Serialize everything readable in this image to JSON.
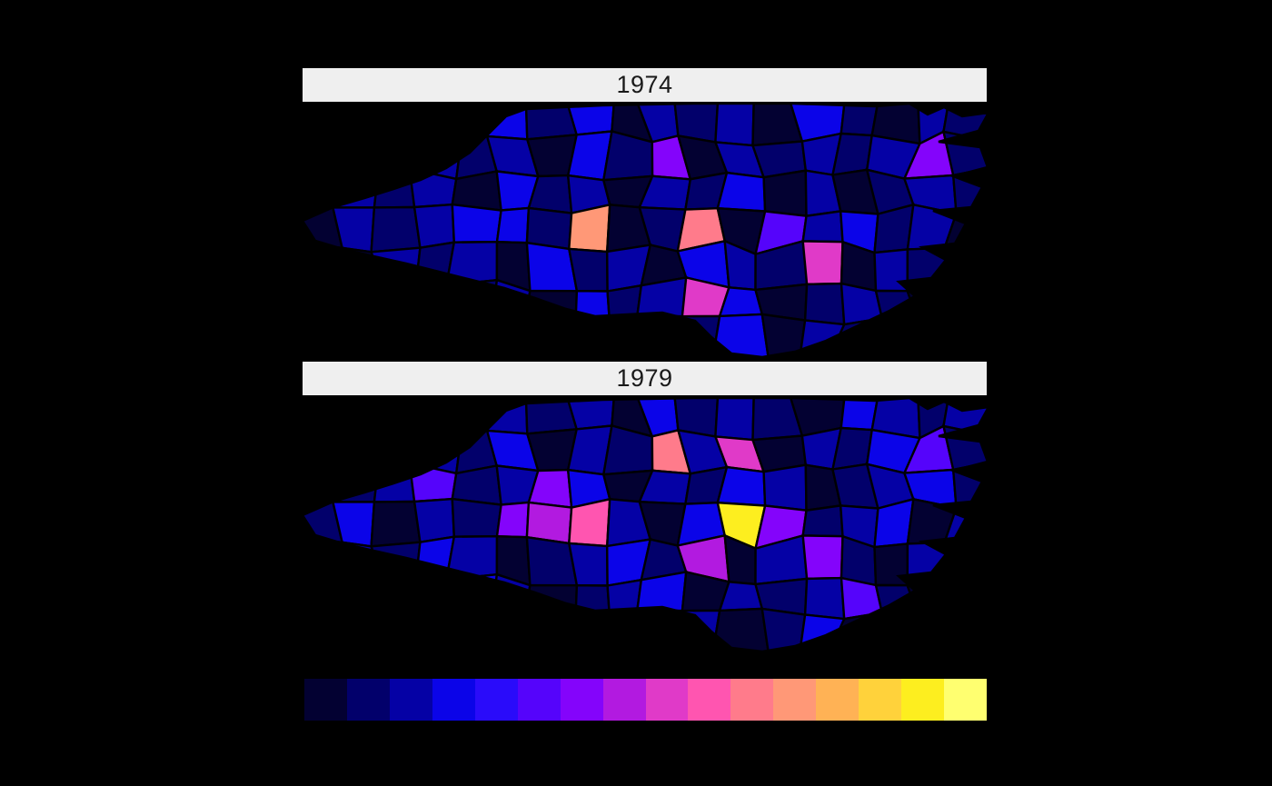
{
  "figure": {
    "background": "#000000",
    "strip_bg": "#efefef",
    "strip_text_color": "#1a1a1a",
    "county_border_color": "#000000"
  },
  "chart_data": {
    "type": "heatmap",
    "subtype": "faceted_choropleth_map_north_carolina_counties",
    "title": "",
    "xlabel": "",
    "ylabel": "",
    "facets": [
      {
        "label": "1974",
        "cell_colors": [
          "212103130212031021",
          "120212031602121261",
          "021203120213020121",
          "0212331b01a0523120",
          "102120312032180210",
          "210212031283012102",
          "120120120213021021"
        ]
      },
      {
        "label": "1979",
        "cell_colors": [
          "121032120312103212",
          "201213021a28021351",
          "012512630213201231",
          "13021679203e612302",
          "021320123170261023",
          "102132012302125102",
          "210201203120130210"
        ]
      }
    ],
    "grid_rows": 7,
    "grid_cols": 18,
    "palette": [
      "#030132",
      "#02006b",
      "#0501a5",
      "#0b04e8",
      "#2a0bfa",
      "#5504fb",
      "#8404fb",
      "#b21ae0",
      "#e03ac8",
      "#ff55b0",
      "#ff7b8b",
      "#ff9877",
      "#ffb255",
      "#ffd23b",
      "#fdee1f",
      "#ffff70"
    ],
    "legend": {
      "position": "bottom",
      "orientation": "horizontal",
      "n_steps": 16,
      "tick_labels_visible": false
    }
  }
}
